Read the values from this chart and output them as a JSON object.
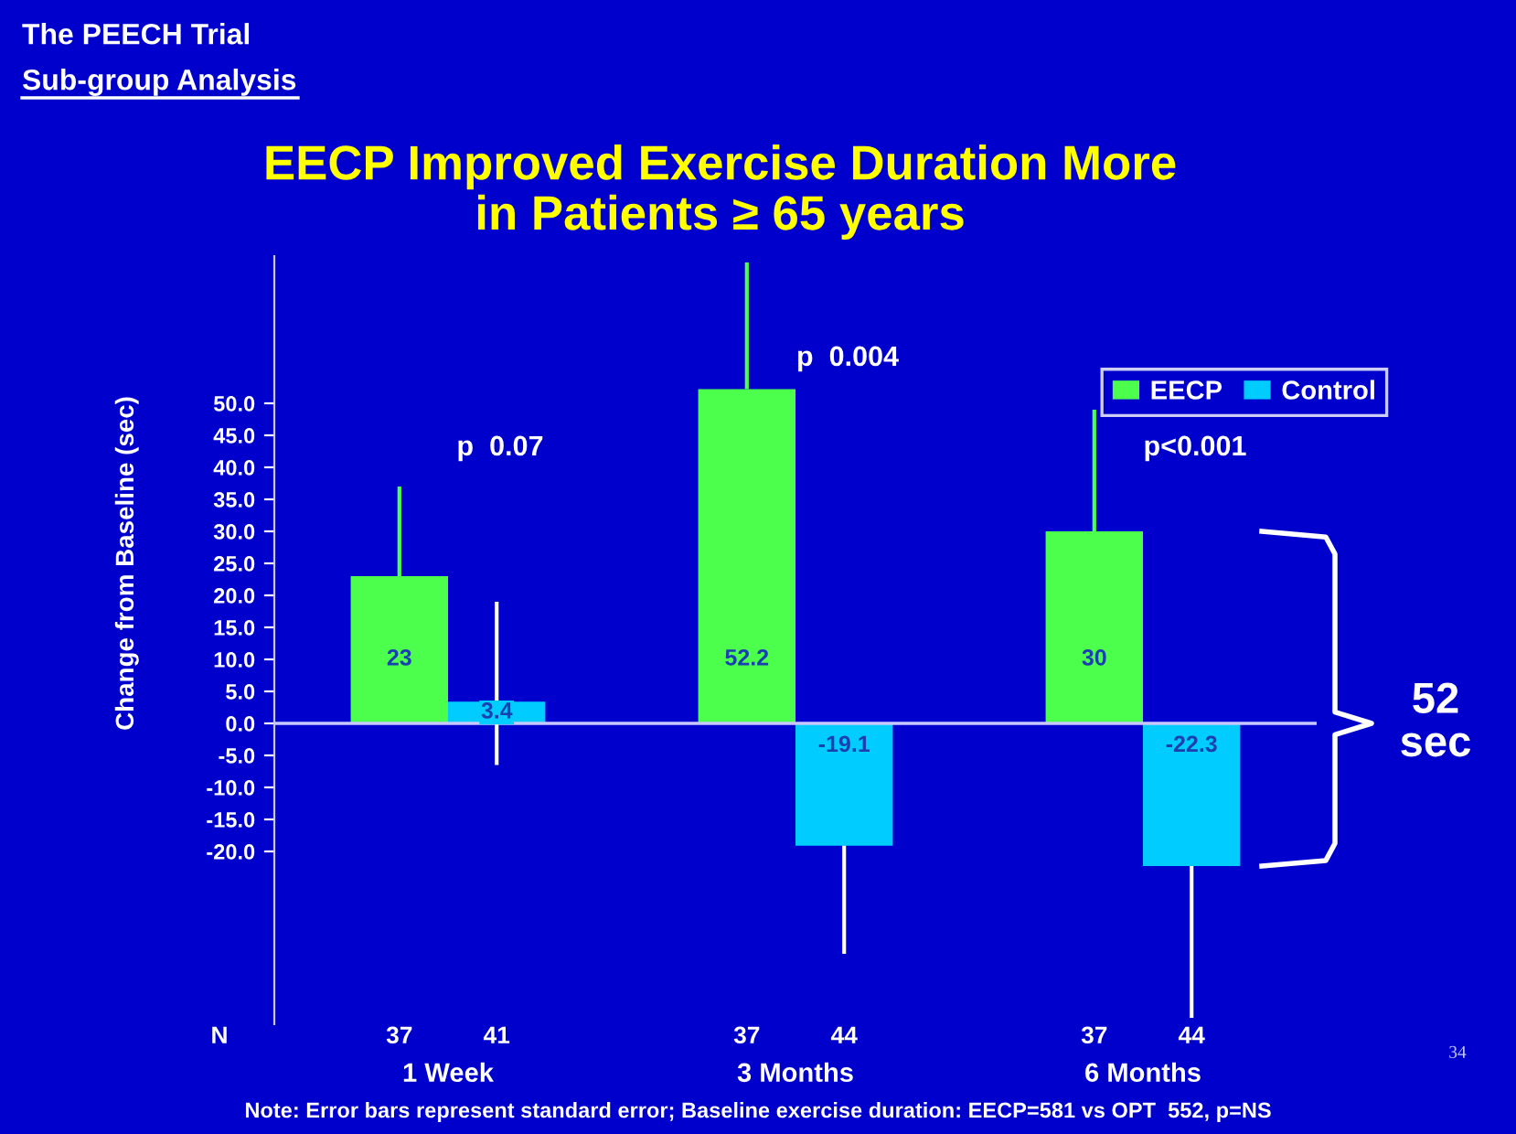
{
  "chart_data": {
    "type": "bar",
    "title": "EECP Improved Exercise Duration More\nin Patients ≥ 65 years",
    "ylabel": "Change from Baseline (sec)",
    "categories": [
      "1 Week",
      "3 Months",
      "6 Months"
    ],
    "series": [
      {
        "name": "EECP",
        "color": "#4dff4d",
        "values": [
          23,
          52.2,
          30
        ],
        "errors": [
          [
            23,
            37
          ],
          [
            52.2,
            72
          ],
          [
            30,
            49
          ]
        ]
      },
      {
        "name": "Control",
        "color": "#00ccff",
        "values": [
          3.4,
          -19.1,
          -22.3
        ],
        "errors": [
          [
            -6.5,
            19
          ],
          [
            -36,
            -19.1
          ],
          [
            -46,
            -22.3
          ]
        ]
      }
    ],
    "ylim": [
      -47,
      73
    ],
    "yticks": [
      {
        "value": -20,
        "label": "-20.0"
      },
      {
        "value": -15,
        "label": "-15.0"
      },
      {
        "value": -10,
        "label": "-10.0"
      },
      {
        "value": -5,
        "label": "-5.0"
      },
      {
        "value": 0,
        "label": "0.0"
      },
      {
        "value": 5,
        "label": "5.0"
      },
      {
        "value": 10,
        "label": "10.0"
      },
      {
        "value": 15,
        "label": "15.0"
      },
      {
        "value": 20,
        "label": "20.0"
      },
      {
        "value": 25,
        "label": "25.0"
      },
      {
        "value": 30,
        "label": "30.0"
      },
      {
        "value": 35,
        "label": "35.0"
      },
      {
        "value": 40,
        "label": "40.0"
      },
      {
        "value": 45,
        "label": "45.0"
      },
      {
        "value": 50,
        "label": "50.0"
      }
    ],
    "ref_lines": [
      {
        "axis": "y",
        "value": 0,
        "color": "#c8c8ff"
      }
    ],
    "data_labels": true,
    "legend": "top right",
    "grid": false,
    "annotations": [
      "The PEECH Trial",
      "Sub-group Analysis",
      "p  0.07",
      "p  0.004",
      "p<0.001",
      "N",
      "37",
      "41",
      "37",
      "44",
      "37",
      "44",
      "52\nsec",
      "Note: Error bars represent standard error; Baseline exercise duration: EECP=581 vs OPT  552, p=NS",
      "34"
    ]
  }
}
